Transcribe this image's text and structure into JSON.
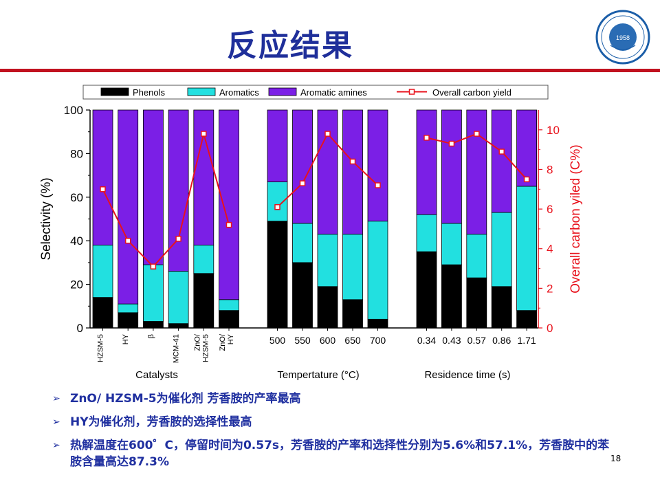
{
  "slide": {
    "title": "反应结果",
    "page_number": "18",
    "accent_color": "#c1121f",
    "title_color": "#1f2f9a"
  },
  "logo": {
    "year": "1958",
    "ring_text": "University of Science and Technology of China",
    "top_text": "中国科学技术大学"
  },
  "bullets": [
    {
      "marker": "➢",
      "text": "ZnO/ HZSM-5为催化剂 芳香胺的产率最高"
    },
    {
      "marker": "➢",
      "text": "HY为催化剂，芳香胺的选择性最高"
    },
    {
      "marker": "➢",
      "text": "热解温度在600゜C，停留时间为0.57s，芳香胺的产率和选择性分别为5.6%和57.1%，芳香胺中的苯胺含量高达87.3%"
    }
  ],
  "chart_data": {
    "type": "bar",
    "stacked": true,
    "colors": {
      "Phenols": "#000000",
      "Aromatics": "#22e0e0",
      "Aromatic amines": "#7b1fe6",
      "Overall carbon yield": "#e8121c"
    },
    "legend": [
      "Phenols",
      "Aromatics",
      "Aromatic amines",
      "Overall carbon yield"
    ],
    "legend_position": "top",
    "ylabel": "Selectivity (%)",
    "ylim": [
      0,
      100
    ],
    "yticks": [
      0,
      20,
      40,
      60,
      80,
      100
    ],
    "y2label": "Overall carbon yiled (C%)",
    "y2lim": [
      0,
      11
    ],
    "y2ticks": [
      0,
      2,
      4,
      6,
      8,
      10
    ],
    "groups": [
      {
        "xlabel": "Catalysts",
        "categories": [
          "HZSM-5",
          "HY",
          "β",
          "MCM-41",
          "ZnO/\nHZSM-5",
          "ZnO/\nHY"
        ],
        "phenols": [
          14,
          7,
          3,
          2,
          25,
          8
        ],
        "aromatics": [
          24,
          4,
          26,
          24,
          13,
          5
        ],
        "aromatic_amines": [
          62,
          89,
          71,
          74,
          62,
          87
        ],
        "yield": [
          7.0,
          4.4,
          3.1,
          4.5,
          9.8,
          5.2
        ]
      },
      {
        "xlabel": "Tempertature (°C)",
        "categories": [
          "500",
          "550",
          "600",
          "650",
          "700"
        ],
        "phenols": [
          49,
          30,
          19,
          13,
          4
        ],
        "aromatics": [
          18,
          18,
          24,
          30,
          45
        ],
        "aromatic_amines": [
          33,
          52,
          57,
          57,
          51
        ],
        "yield": [
          6.1,
          7.3,
          9.8,
          8.4,
          7.2
        ]
      },
      {
        "xlabel": "Residence time (s)",
        "categories": [
          "0.34",
          "0.43",
          "0.57",
          "0.86",
          "1.71"
        ],
        "phenols": [
          35,
          29,
          23,
          19,
          8
        ],
        "aromatics": [
          17,
          19,
          20,
          34,
          57
        ],
        "aromatic_amines": [
          48,
          52,
          57,
          47,
          35
        ],
        "yield": [
          9.6,
          9.3,
          9.8,
          8.9,
          7.5
        ]
      }
    ]
  }
}
